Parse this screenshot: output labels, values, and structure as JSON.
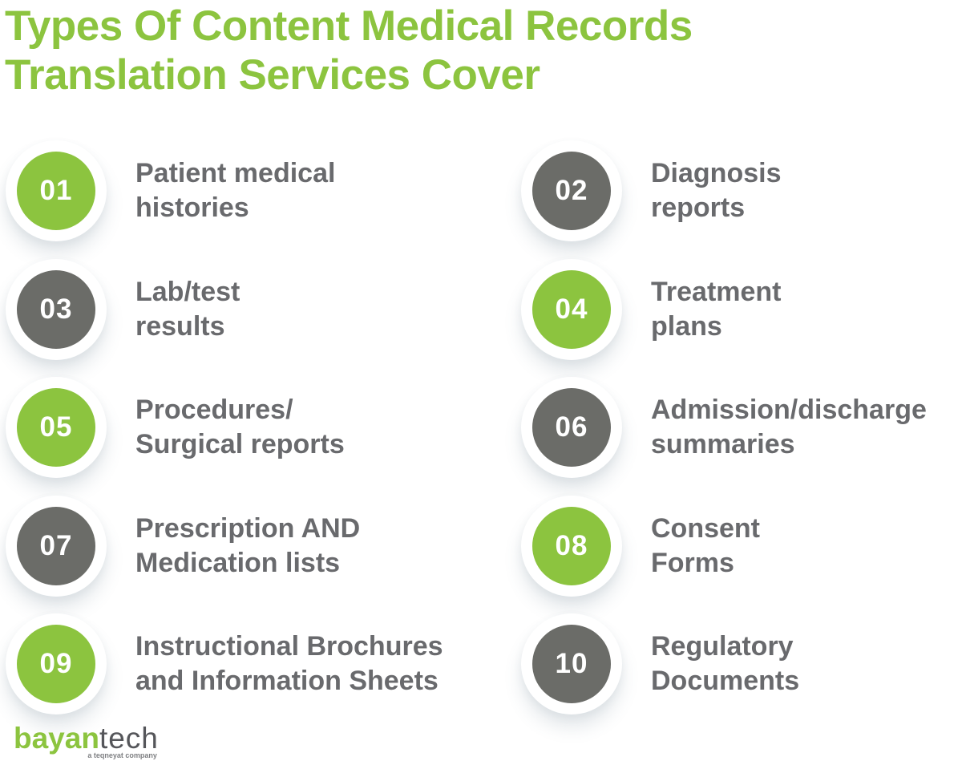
{
  "title": {
    "lines": [
      "Types Of Content Medical Records",
      "Translation Services Cover"
    ]
  },
  "items": [
    {
      "number": "01",
      "color": "green",
      "lines": [
        "Patient medical",
        "histories"
      ]
    },
    {
      "number": "02",
      "color": "gray",
      "lines": [
        "Diagnosis",
        "reports"
      ]
    },
    {
      "number": "03",
      "color": "gray",
      "lines": [
        "Lab/test",
        "results"
      ]
    },
    {
      "number": "04",
      "color": "green",
      "lines": [
        "Treatment",
        "plans"
      ]
    },
    {
      "number": "05",
      "color": "green",
      "lines": [
        "Procedures/",
        "Surgical reports"
      ]
    },
    {
      "number": "06",
      "color": "gray",
      "lines": [
        "Admission/discharge",
        "summaries"
      ]
    },
    {
      "number": "07",
      "color": "gray",
      "lines": [
        "Prescription AND",
        "Medication lists"
      ]
    },
    {
      "number": "08",
      "color": "green",
      "lines": [
        "Consent",
        "Forms"
      ]
    },
    {
      "number": "09",
      "color": "green",
      "lines": [
        "Instructional Brochures",
        "and Information Sheets"
      ]
    },
    {
      "number": "10",
      "color": "gray",
      "lines": [
        "Regulatory",
        "Documents"
      ]
    }
  ],
  "logo": {
    "part1": "bayan",
    "part2": "tech",
    "tagline": "a teqneyat company"
  },
  "theme": {
    "green": "#8CC43F",
    "gray": "#6B6C68",
    "text": "#696A6D",
    "logo_gray": "#55565A",
    "tagline_gray": "#7F8083"
  }
}
